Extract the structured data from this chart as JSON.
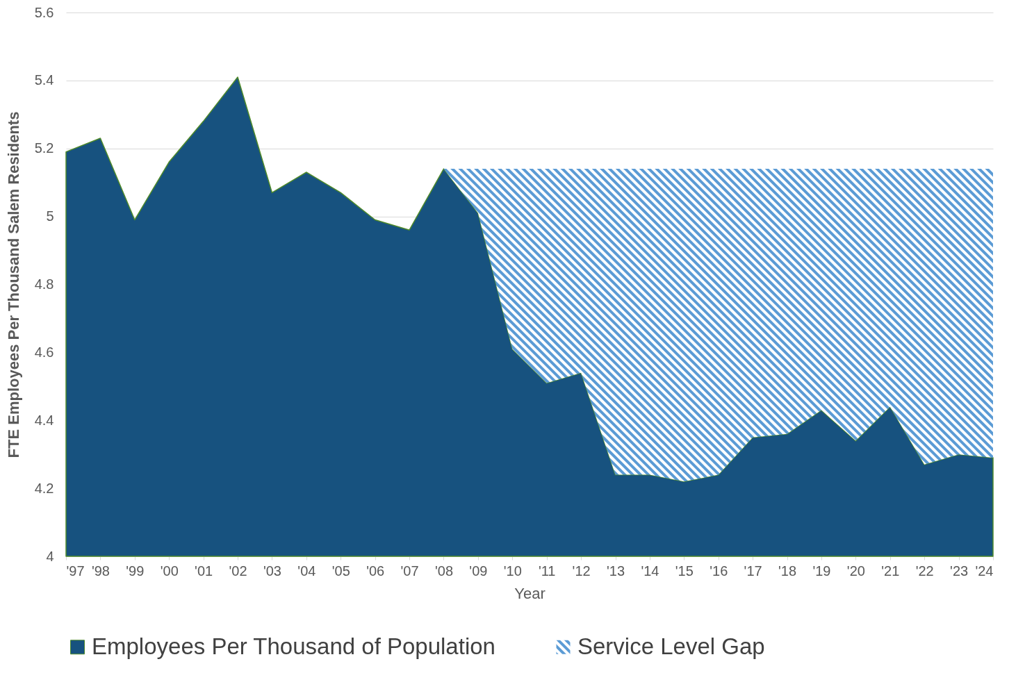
{
  "chart_data": {
    "type": "area",
    "xlabel": "Year",
    "ylabel": "FTE Employees Per Thousand Salem Residents",
    "categories": [
      "'97",
      "'98",
      "'99",
      "'00",
      "'01",
      "'02",
      "'03",
      "'04",
      "'05",
      "'06",
      "'07",
      "'08",
      "'09",
      "'10",
      "'11",
      "'12",
      "'13",
      "'14",
      "'15",
      "'16",
      "'17",
      "'18",
      "'19",
      "'20",
      "'21",
      "'22",
      "'23",
      "'24"
    ],
    "series": [
      {
        "name": "Employees Per Thousand of Population",
        "color": "#17527f",
        "values": [
          5.19,
          5.23,
          4.99,
          5.16,
          5.28,
          5.41,
          5.07,
          5.13,
          5.07,
          4.99,
          4.96,
          5.14,
          5.01,
          4.61,
          4.51,
          4.54,
          4.24,
          4.24,
          4.22,
          4.24,
          4.35,
          4.36,
          4.43,
          4.34,
          4.44,
          4.27,
          4.3,
          4.29
        ]
      },
      {
        "name": "Service Level Gap",
        "color": "#5b9bd5",
        "values": [
          null,
          null,
          null,
          null,
          null,
          null,
          null,
          null,
          null,
          null,
          null,
          5.14,
          5.14,
          5.14,
          5.14,
          5.14,
          5.14,
          5.14,
          5.14,
          5.14,
          5.14,
          5.14,
          5.14,
          5.14,
          5.14,
          5.14,
          5.14,
          5.14
        ]
      }
    ],
    "ylim": [
      4,
      5.6
    ],
    "yticks": [
      4,
      4.2,
      4.4,
      4.6,
      4.8,
      5,
      5.2,
      5.4,
      5.6
    ],
    "grid": "y",
    "legend": "bottom"
  }
}
